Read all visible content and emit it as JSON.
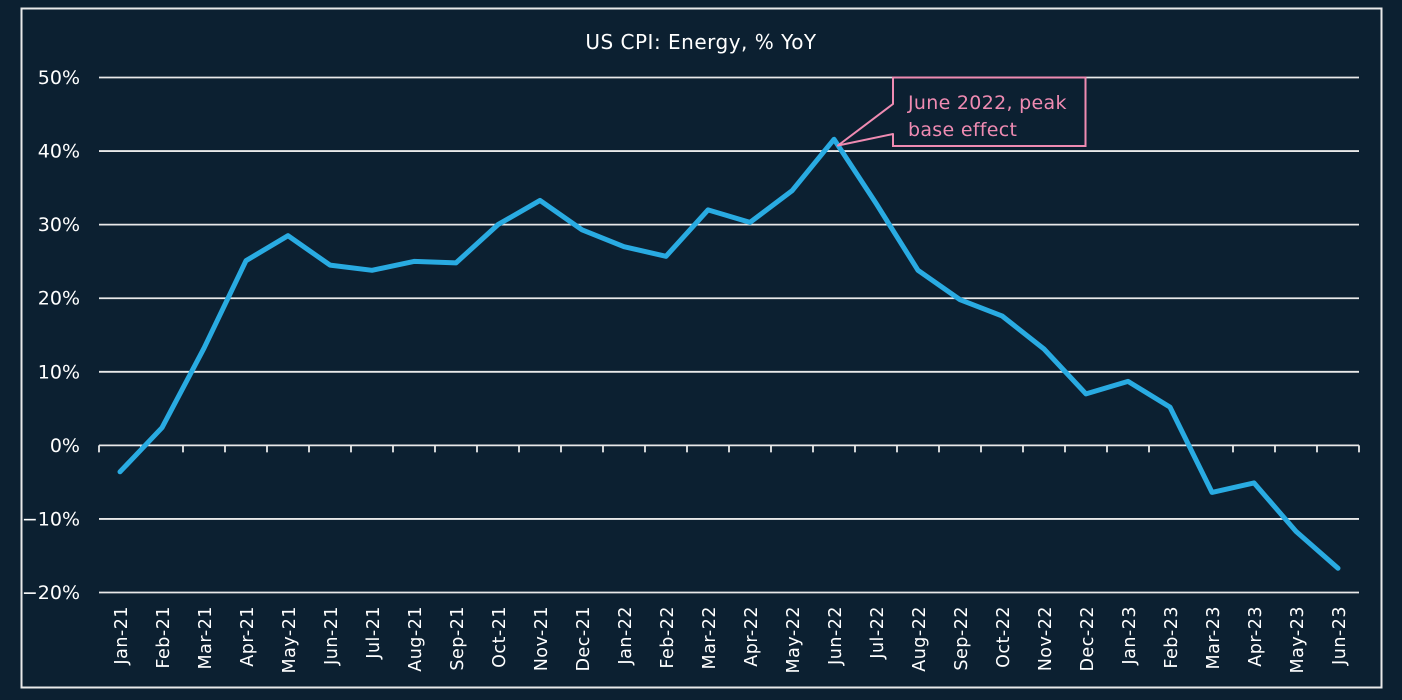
{
  "title": "US CPI: Energy, % YoY",
  "colors": {
    "background": "#0C2031",
    "line": "#29ABE2",
    "grid": "#E9E9E9",
    "text": "#FFFFFF",
    "annotation": "#EF8BB2"
  },
  "chart_data": {
    "type": "line",
    "title": "US CPI: Energy, % YoY",
    "xlabel": "",
    "ylabel": "",
    "ylim": [
      -20,
      50
    ],
    "grid": true,
    "legend": false,
    "yticks": [
      50,
      40,
      30,
      20,
      10,
      0,
      -10,
      -20
    ],
    "ytick_labels": [
      "50%",
      "40%",
      "30%",
      "20%",
      "10%",
      "0%",
      "−10%",
      "−20%"
    ],
    "x": [
      "Jan-21",
      "Feb-21",
      "Mar-21",
      "Apr-21",
      "May-21",
      "Jun-21",
      "Jul-21",
      "Aug-21",
      "Sep-21",
      "Oct-21",
      "Nov-21",
      "Dec-21",
      "Jan-22",
      "Feb-22",
      "Mar-22",
      "Apr-22",
      "May-22",
      "Jun-22",
      "Jul-22",
      "Aug-22",
      "Sep-22",
      "Oct-22",
      "Nov-22",
      "Dec-22",
      "Jan-23",
      "Feb-23",
      "Mar-23",
      "Apr-23",
      "May-23",
      "Jun-23"
    ],
    "series": [
      {
        "name": "US CPI Energy, % YoY",
        "values": [
          -3.6,
          2.4,
          13.2,
          25.1,
          28.5,
          24.5,
          23.8,
          25.0,
          24.8,
          30.0,
          33.3,
          29.3,
          27.0,
          25.7,
          32.0,
          30.3,
          34.6,
          41.6,
          32.9,
          23.8,
          19.8,
          17.6,
          13.1,
          7.0,
          8.7,
          5.2,
          -6.4,
          -5.1,
          -11.7,
          -16.7
        ]
      }
    ],
    "annotation": {
      "lines": [
        "June 2022, peak",
        "base effect"
      ],
      "text": "June 2022, peak base effect",
      "target_x": "Jun-22",
      "target_value": 41.6
    }
  }
}
